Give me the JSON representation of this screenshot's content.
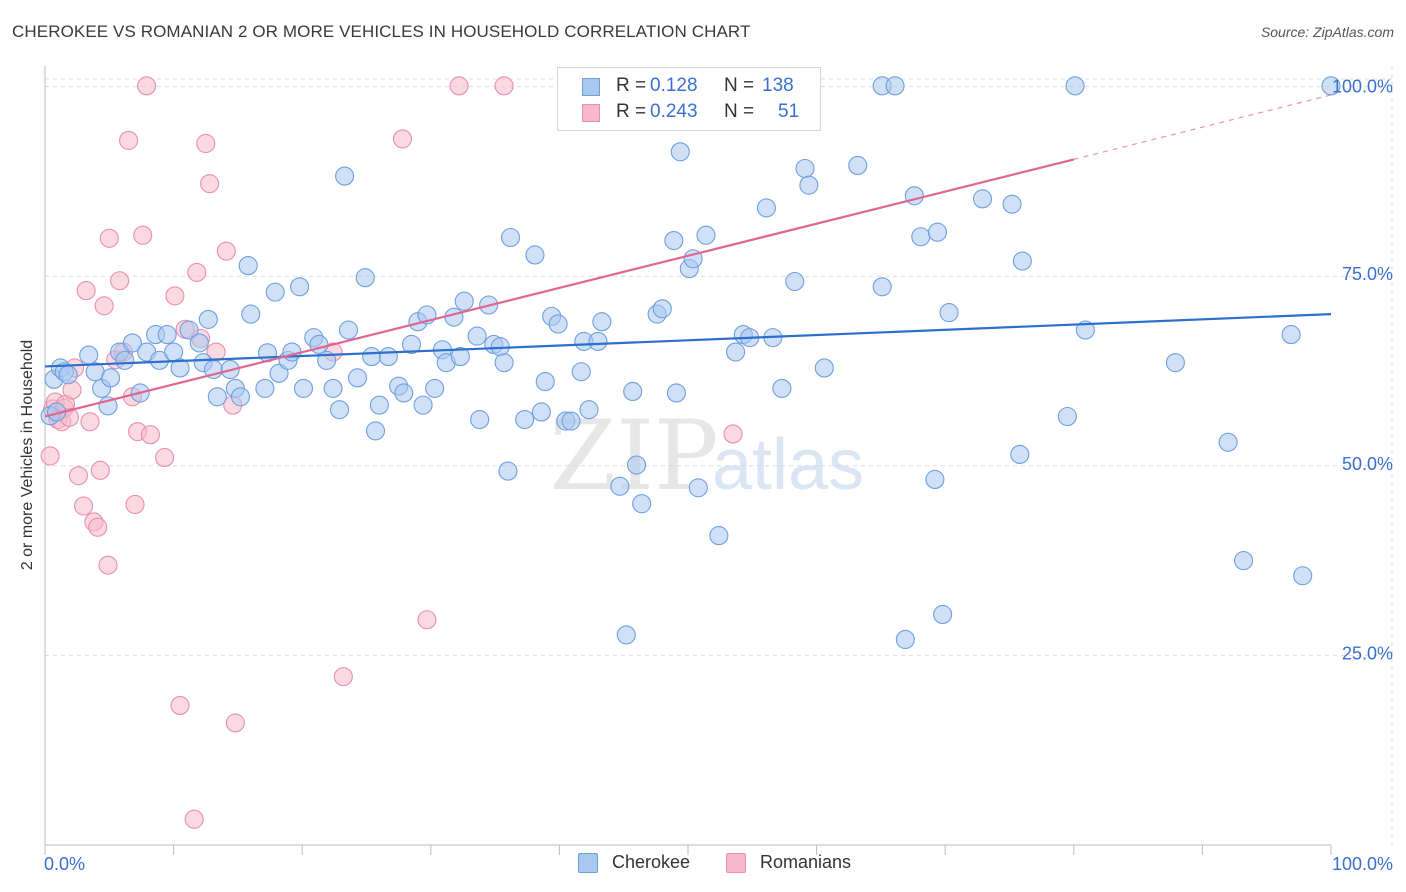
{
  "title": "CHEROKEE VS ROMANIAN 2 OR MORE VEHICLES IN HOUSEHOLD CORRELATION CHART",
  "source": "Source: ZipAtlas.com",
  "watermark": {
    "zip": "ZIP",
    "atlas": "atlas"
  },
  "legend": {
    "r_label": "R =",
    "n_label": "N =",
    "cherokee": {
      "r": "0.128",
      "n": "138"
    },
    "romanians": {
      "r": "0.243",
      "n": "51"
    }
  },
  "colors": {
    "cherokee_fill": "#a9c8f0",
    "cherokee_stroke": "#6f9fde",
    "cherokee_line": "#2c6fcc",
    "romanians_fill": "#f6b9cb",
    "romanians_stroke": "#e98fab",
    "romanians_line": "#e06690",
    "tick_label": "#3a6fd0",
    "grid": "#dcdcdc"
  },
  "chart_data": {
    "type": "scatter",
    "xlabel": "",
    "ylabel": "2 or more Vehicles in Household",
    "xlim": [
      0,
      100
    ],
    "ylim": [
      0,
      101
    ],
    "x_tick_labels": [
      "0.0%",
      "100.0%"
    ],
    "y_ticks": [
      25,
      50,
      75,
      100
    ],
    "y_tick_labels": [
      "25.0%",
      "50.0%",
      "75.0%",
      "100.0%"
    ],
    "grid": true,
    "legend_position": "top-center",
    "series": [
      {
        "name": "Cherokee",
        "trend": {
          "x": [
            0,
            100
          ],
          "y": [
            63.1,
            70.0
          ]
        },
        "points": [
          [
            0.4,
            56.6
          ],
          [
            0.7,
            61.4
          ],
          [
            0.9,
            57.1
          ],
          [
            1.2,
            62.9
          ],
          [
            1.5,
            62.4
          ],
          [
            1.8,
            62.0
          ],
          [
            3.4,
            64.6
          ],
          [
            3.9,
            62.4
          ],
          [
            4.4,
            60.2
          ],
          [
            4.9,
            57.9
          ],
          [
            5.1,
            61.6
          ],
          [
            5.8,
            65.0
          ],
          [
            6.2,
            63.9
          ],
          [
            6.8,
            66.2
          ],
          [
            7.4,
            59.6
          ],
          [
            7.9,
            65.0
          ],
          [
            8.6,
            67.3
          ],
          [
            8.9,
            63.9
          ],
          [
            9.5,
            67.3
          ],
          [
            10.0,
            65.0
          ],
          [
            10.5,
            62.9
          ],
          [
            11.2,
            67.9
          ],
          [
            12.0,
            66.2
          ],
          [
            12.3,
            63.6
          ],
          [
            12.7,
            69.3
          ],
          [
            13.1,
            62.7
          ],
          [
            13.4,
            59.1
          ],
          [
            14.4,
            62.7
          ],
          [
            14.8,
            60.2
          ],
          [
            15.2,
            59.1
          ],
          [
            15.8,
            76.4
          ],
          [
            16.0,
            70.0
          ],
          [
            17.1,
            60.2
          ],
          [
            17.3,
            64.9
          ],
          [
            17.9,
            72.9
          ],
          [
            18.2,
            62.2
          ],
          [
            18.9,
            63.9
          ],
          [
            19.2,
            65.0
          ],
          [
            19.8,
            73.6
          ],
          [
            20.1,
            60.2
          ],
          [
            20.9,
            66.9
          ],
          [
            21.3,
            66.0
          ],
          [
            21.9,
            63.9
          ],
          [
            22.4,
            60.2
          ],
          [
            22.9,
            57.4
          ],
          [
            23.3,
            88.2
          ],
          [
            23.6,
            67.9
          ],
          [
            24.3,
            61.6
          ],
          [
            24.9,
            74.8
          ],
          [
            25.4,
            64.4
          ],
          [
            25.7,
            54.6
          ],
          [
            26.0,
            58.0
          ],
          [
            26.7,
            64.4
          ],
          [
            27.5,
            60.5
          ],
          [
            27.9,
            59.6
          ],
          [
            28.5,
            66.0
          ],
          [
            29.0,
            69.0
          ],
          [
            29.4,
            58.0
          ],
          [
            29.7,
            69.9
          ],
          [
            30.3,
            60.2
          ],
          [
            30.9,
            65.3
          ],
          [
            31.2,
            63.6
          ],
          [
            31.8,
            69.6
          ],
          [
            32.3,
            64.4
          ],
          [
            32.6,
            71.7
          ],
          [
            33.6,
            67.1
          ],
          [
            33.8,
            56.1
          ],
          [
            34.5,
            71.2
          ],
          [
            34.9,
            66.0
          ],
          [
            35.4,
            65.7
          ],
          [
            35.7,
            63.6
          ],
          [
            36.0,
            49.3
          ],
          [
            36.2,
            80.1
          ],
          [
            37.3,
            56.1
          ],
          [
            38.1,
            77.8
          ],
          [
            38.6,
            57.1
          ],
          [
            38.9,
            61.1
          ],
          [
            39.4,
            69.7
          ],
          [
            39.9,
            68.7
          ],
          [
            40.5,
            55.9
          ],
          [
            40.9,
            55.9
          ],
          [
            41.7,
            62.4
          ],
          [
            41.9,
            66.4
          ],
          [
            42.3,
            57.4
          ],
          [
            43.0,
            66.4
          ],
          [
            43.3,
            69.0
          ],
          [
            44.7,
            47.3
          ],
          [
            45.2,
            27.7
          ],
          [
            45.7,
            59.8
          ],
          [
            46.0,
            50.1
          ],
          [
            46.4,
            45.0
          ],
          [
            47.6,
            70.0
          ],
          [
            48.0,
            70.7
          ],
          [
            48.9,
            79.7
          ],
          [
            49.1,
            59.6
          ],
          [
            49.4,
            91.4
          ],
          [
            50.1,
            76.0
          ],
          [
            50.4,
            77.3
          ],
          [
            50.8,
            47.1
          ],
          [
            51.4,
            80.4
          ],
          [
            52.0,
            100.1
          ],
          [
            52.4,
            40.8
          ],
          [
            53.7,
            65.0
          ],
          [
            54.3,
            67.3
          ],
          [
            54.8,
            66.9
          ],
          [
            56.1,
            84.0
          ],
          [
            56.6,
            66.9
          ],
          [
            57.3,
            60.2
          ],
          [
            58.3,
            74.3
          ],
          [
            59.1,
            89.2
          ],
          [
            59.4,
            87.0
          ],
          [
            60.6,
            62.9
          ],
          [
            63.2,
            89.6
          ],
          [
            65.1,
            73.6
          ],
          [
            65.1,
            100.1
          ],
          [
            66.1,
            100.1
          ],
          [
            66.9,
            27.1
          ],
          [
            67.6,
            85.6
          ],
          [
            68.1,
            80.2
          ],
          [
            69.2,
            48.2
          ],
          [
            69.4,
            80.8
          ],
          [
            69.8,
            30.4
          ],
          [
            70.3,
            70.2
          ],
          [
            72.9,
            85.2
          ],
          [
            75.2,
            84.5
          ],
          [
            75.8,
            51.5
          ],
          [
            76.0,
            77.0
          ],
          [
            79.5,
            56.5
          ],
          [
            80.1,
            100.1
          ],
          [
            80.9,
            67.9
          ],
          [
            87.9,
            63.6
          ],
          [
            92.0,
            53.1
          ],
          [
            93.2,
            37.5
          ],
          [
            96.9,
            67.3
          ],
          [
            97.8,
            35.5
          ],
          [
            100.0,
            100.1
          ]
        ]
      },
      {
        "name": "Romanians",
        "trend": {
          "x": [
            0,
            80
          ],
          "y": [
            56.5,
            90.4
          ]
        },
        "trend_extension": {
          "x": [
            80,
            100
          ],
          "y": [
            90.4,
            98.9
          ]
        },
        "points": [
          [
            0.4,
            51.3
          ],
          [
            0.6,
            57.5
          ],
          [
            0.8,
            58.4
          ],
          [
            1.0,
            56.1
          ],
          [
            1.3,
            55.8
          ],
          [
            1.5,
            57.6
          ],
          [
            1.6,
            58.1
          ],
          [
            1.9,
            56.4
          ],
          [
            2.1,
            60.0
          ],
          [
            2.3,
            62.9
          ],
          [
            2.6,
            48.7
          ],
          [
            3.0,
            44.7
          ],
          [
            3.2,
            73.1
          ],
          [
            3.5,
            55.8
          ],
          [
            3.8,
            42.6
          ],
          [
            4.1,
            41.9
          ],
          [
            4.3,
            49.4
          ],
          [
            4.6,
            71.1
          ],
          [
            4.9,
            36.9
          ],
          [
            5.0,
            80.0
          ],
          [
            5.5,
            64.0
          ],
          [
            5.8,
            74.4
          ],
          [
            6.1,
            65.0
          ],
          [
            6.5,
            92.9
          ],
          [
            6.8,
            59.1
          ],
          [
            7.0,
            44.9
          ],
          [
            7.2,
            54.5
          ],
          [
            7.6,
            80.4
          ],
          [
            7.9,
            100.1
          ],
          [
            8.2,
            54.1
          ],
          [
            9.3,
            51.1
          ],
          [
            10.1,
            72.4
          ],
          [
            10.5,
            18.4
          ],
          [
            10.9,
            68.0
          ],
          [
            11.6,
            3.4
          ],
          [
            11.8,
            75.5
          ],
          [
            12.1,
            66.8
          ],
          [
            12.5,
            92.5
          ],
          [
            12.8,
            87.2
          ],
          [
            13.3,
            65.0
          ],
          [
            14.1,
            78.3
          ],
          [
            14.6,
            58.0
          ],
          [
            14.8,
            16.1
          ],
          [
            22.4,
            65.0
          ],
          [
            23.2,
            22.2
          ],
          [
            27.8,
            93.1
          ],
          [
            29.7,
            29.7
          ],
          [
            32.2,
            100.1
          ],
          [
            35.7,
            100.1
          ],
          [
            53.5,
            54.2
          ],
          [
            59.0,
            100.1
          ]
        ]
      }
    ]
  }
}
